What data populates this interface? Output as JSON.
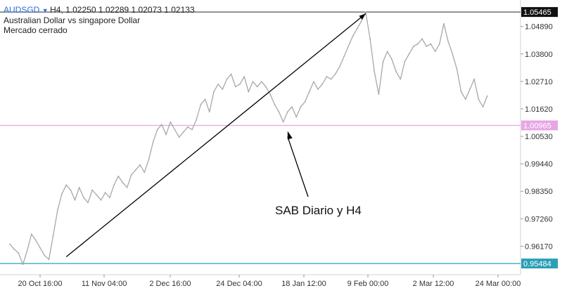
{
  "header": {
    "symbol": "AUDSGD",
    "ohlc": "H4, 1.02250 1.02289 1.02073 1.02133",
    "description": "Australian Dollar vs singapore Dollar",
    "status": "Mercado cerrado"
  },
  "colors": {
    "price_line": "#a8a8a8",
    "symbol": "#2f6fd6",
    "pink_level": "#e6a6e6",
    "blue_level": "#2aa0b8",
    "trend_line": "#000000"
  },
  "chart_data": {
    "type": "line",
    "title": "",
    "xlabel": "",
    "ylabel": "",
    "ylim": [
      0.9515,
      1.0583
    ],
    "x_ticks": [
      "20 Oct 16:00",
      "11 Nov 04:00",
      "2 Dec 16:00",
      "24 Dec 04:00",
      "18 Jan 12:00",
      "9 Feb 00:00",
      "2 Mar 12:00",
      "24 Mar 00:00"
    ],
    "y_ticks": [
      1.0489,
      1.038,
      1.0271,
      1.0162,
      1.0053,
      0.9944,
      0.9835,
      0.9726,
      0.9617
    ],
    "y_tick_labels": [
      "1.04890",
      "1.03800",
      "1.02710",
      "1.01620",
      "1.00530",
      "0.99440",
      "0.98350",
      "0.97260",
      "0.96170"
    ],
    "series": [
      {
        "x": [
          0,
          1,
          2,
          3,
          4,
          5,
          6,
          7,
          8,
          9,
          10,
          11,
          12,
          13,
          14,
          15,
          16,
          17,
          18,
          19,
          20,
          21,
          22,
          23,
          24,
          25,
          26,
          27,
          28,
          29,
          30,
          31,
          32,
          33,
          34,
          35,
          36,
          37,
          38,
          39,
          40,
          41,
          42,
          43,
          44,
          45,
          46,
          47,
          48,
          49,
          50,
          51,
          52,
          53,
          54,
          55,
          56,
          57,
          58,
          59,
          60,
          61,
          62,
          63,
          64,
          65,
          66,
          67,
          68,
          69,
          70,
          71,
          72,
          73,
          74,
          75,
          76,
          77,
          78,
          79,
          80,
          81,
          82,
          83,
          84,
          85,
          86,
          87,
          88,
          89,
          90,
          91,
          92,
          93,
          94,
          95,
          96,
          97,
          98,
          99,
          100,
          101,
          102,
          103,
          104,
          105,
          106,
          107,
          108,
          109,
          110
        ],
        "values": [
          0.9625,
          0.9605,
          0.959,
          0.9545,
          0.96,
          0.9665,
          0.964,
          0.961,
          0.958,
          0.9565,
          0.966,
          0.976,
          0.9825,
          0.986,
          0.984,
          0.98,
          0.985,
          0.981,
          0.979,
          0.984,
          0.982,
          0.98,
          0.983,
          0.981,
          0.986,
          0.9895,
          0.987,
          0.985,
          0.99,
          0.992,
          0.994,
          0.991,
          0.996,
          1.003,
          1.008,
          1.01,
          1.006,
          1.011,
          1.008,
          1.005,
          1.007,
          1.009,
          1.008,
          1.012,
          1.018,
          1.02,
          1.015,
          1.023,
          1.026,
          1.024,
          1.028,
          1.03,
          1.025,
          1.026,
          1.029,
          1.023,
          1.027,
          1.025,
          1.027,
          1.025,
          1.022,
          1.018,
          1.015,
          1.011,
          1.015,
          1.017,
          1.013,
          1.017,
          1.019,
          1.023,
          1.027,
          1.024,
          1.026,
          1.029,
          1.028,
          1.03,
          1.033,
          1.037,
          1.041,
          1.045,
          1.048,
          1.051,
          1.0546,
          1.044,
          1.031,
          1.022,
          1.035,
          1.039,
          1.036,
          1.031,
          1.028,
          1.035,
          1.038,
          1.041,
          1.042,
          1.044,
          1.041,
          1.042,
          1.039,
          1.042,
          1.05,
          1.043,
          1.038,
          1.032,
          1.023,
          1.02,
          1.024,
          1.028,
          1.02,
          1.017,
          1.0213
        ]
      }
    ],
    "levels": [
      {
        "value": 1.05465,
        "label": "1.05465",
        "style": "black-box"
      },
      {
        "value": 1.00965,
        "label": "1.00965",
        "style": "pink"
      },
      {
        "value": 0.95484,
        "label": "0.95484",
        "style": "blue"
      }
    ],
    "trend_line": {
      "from": [
        13,
        0.9575
      ],
      "to": [
        82,
        1.054
      ]
    },
    "annotation": {
      "text": "SAB Diario y H4",
      "target": [
        64,
        1.0085
      ]
    }
  }
}
